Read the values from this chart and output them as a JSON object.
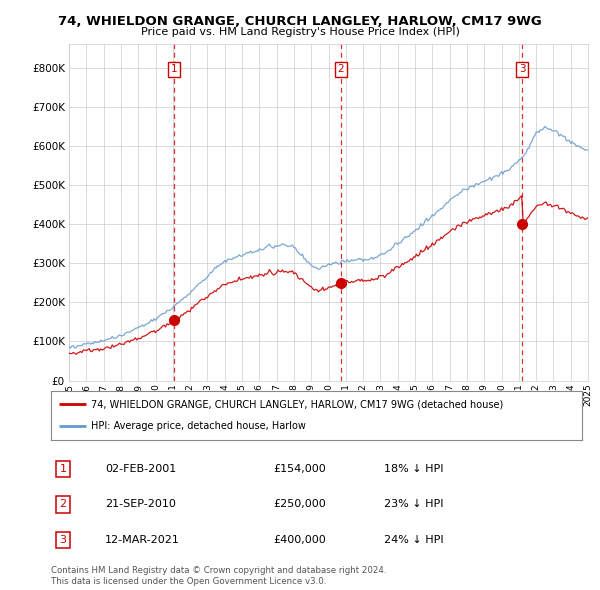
{
  "title1": "74, WHIELDON GRANGE, CHURCH LANGLEY, HARLOW, CM17 9WG",
  "title2": "Price paid vs. HM Land Registry's House Price Index (HPI)",
  "legend_line1": "74, WHIELDON GRANGE, CHURCH LANGLEY, HARLOW, CM17 9WG (detached house)",
  "legend_line2": "HPI: Average price, detached house, Harlow",
  "sale1_date": "02-FEB-2001",
  "sale1_price": 154000,
  "sale1_hpi": "18% ↓ HPI",
  "sale2_date": "21-SEP-2010",
  "sale2_price": 250000,
  "sale2_hpi": "23% ↓ HPI",
  "sale3_date": "12-MAR-2021",
  "sale3_price": 400000,
  "sale3_hpi": "24% ↓ HPI",
  "footer1": "Contains HM Land Registry data © Crown copyright and database right 2024.",
  "footer2": "This data is licensed under the Open Government Licence v3.0.",
  "line_color_red": "#cc0000",
  "line_color_blue": "#6699cc",
  "vline_color": "#cc0000",
  "background_color": "#ffffff",
  "grid_color": "#cccccc",
  "ylim": [
    0,
    860000
  ],
  "yticks": [
    0,
    100000,
    200000,
    300000,
    400000,
    500000,
    600000,
    700000,
    800000
  ],
  "ytick_labels": [
    "£0",
    "£100K",
    "£200K",
    "£300K",
    "£400K",
    "£500K",
    "£600K",
    "£700K",
    "£800K"
  ],
  "xstart_year": 1995,
  "xend_year": 2025,
  "sale1_x": 2001.09,
  "sale2_x": 2010.72,
  "sale3_x": 2021.19
}
